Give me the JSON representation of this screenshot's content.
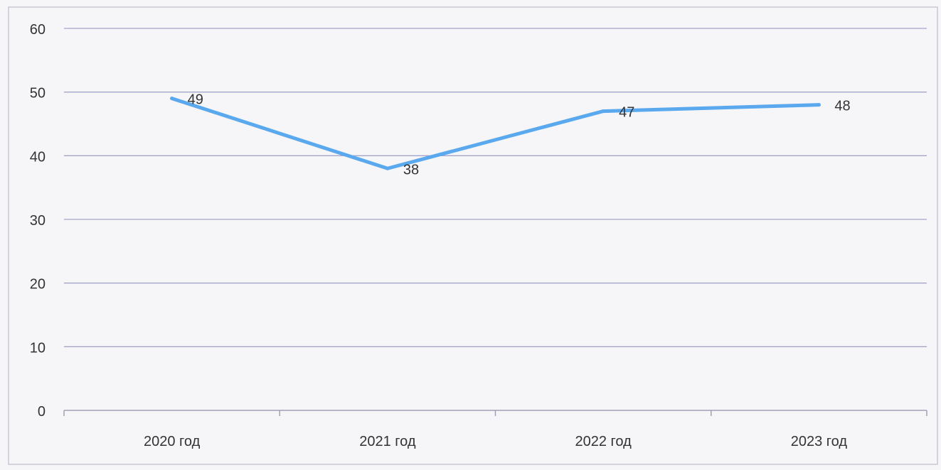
{
  "colors": {
    "line": "#5aa9ee",
    "grid": "#a4a4c8",
    "axis": "#a0a0b8",
    "text": "#333333",
    "background": "#f6f6f8",
    "border": "#c8c8d2"
  },
  "chart_data": {
    "type": "line",
    "title": "",
    "xlabel": "",
    "ylabel": "",
    "categories": [
      "2020 год",
      "2021 год",
      "2022 год",
      "2023 год"
    ],
    "series": [
      {
        "values": [
          49,
          38,
          47,
          48
        ]
      }
    ],
    "data_labels": [
      "49",
      "38",
      "47",
      "48"
    ],
    "ylim": [
      0,
      60
    ],
    "yticks": [
      0,
      10,
      20,
      30,
      40,
      50,
      60
    ],
    "ytick_labels": [
      "0",
      "10",
      "20",
      "30",
      "40",
      "50",
      "60"
    ],
    "grid": true,
    "legend": "none"
  }
}
